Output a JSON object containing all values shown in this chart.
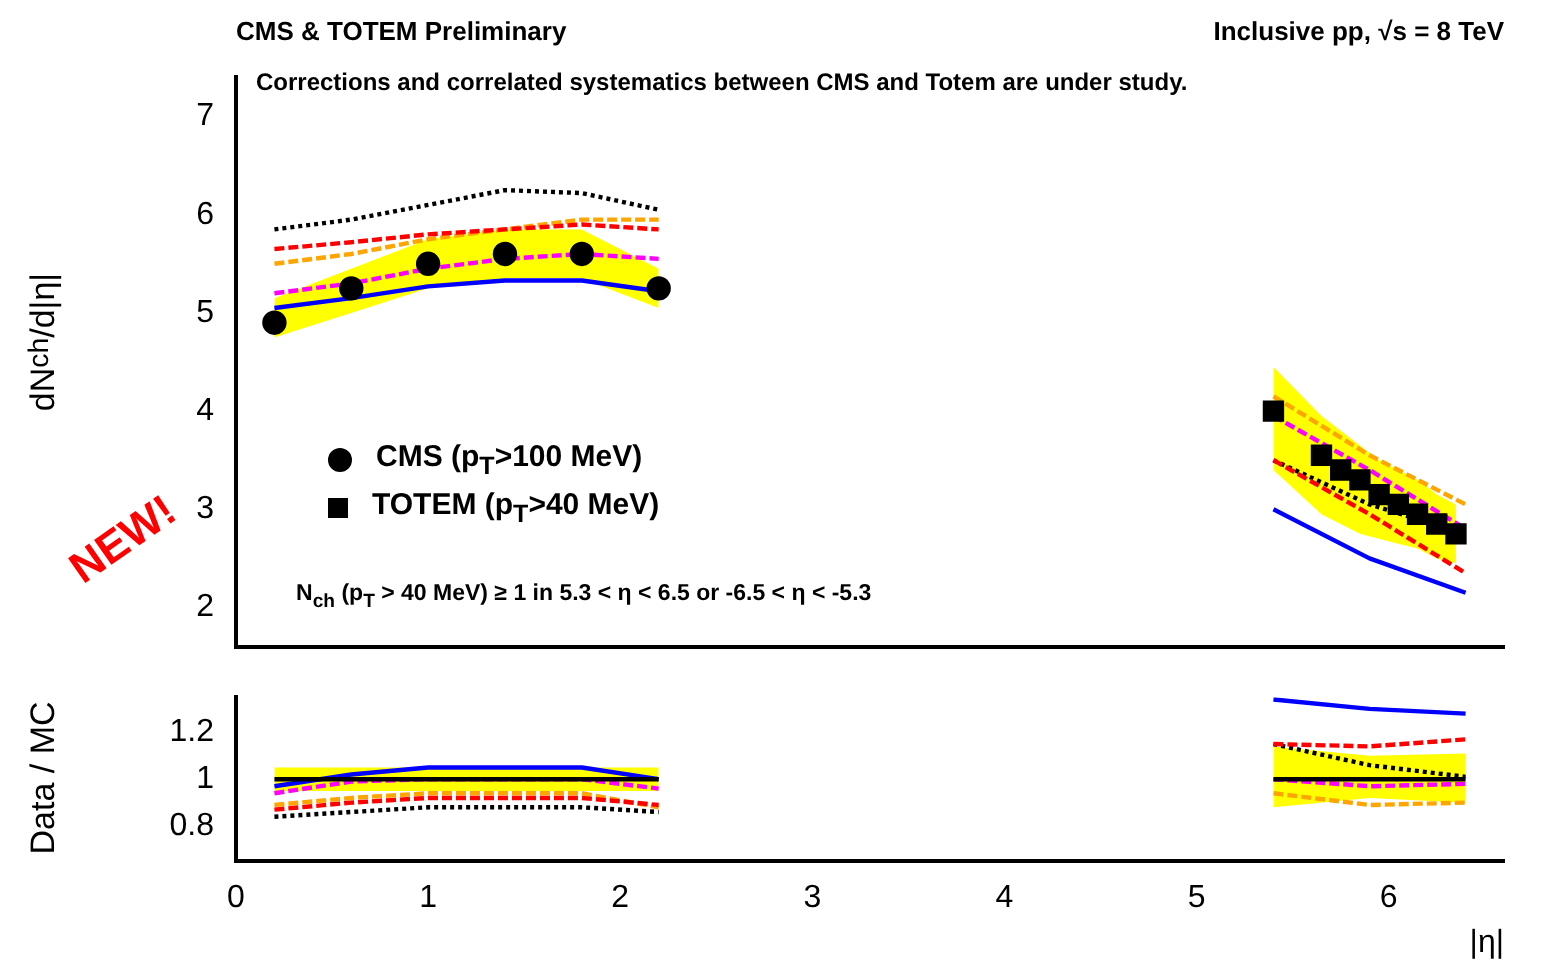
{
  "chart_data": [
    {
      "type": "line",
      "title": "CMS & TOTEM Preliminary",
      "subtitle": "Inclusive pp, √s = 8 TeV",
      "ylabel": "dN$_{ch}$/d|η|",
      "legend": "bottom left",
      "tick_labels": "y",
      "annotations": [
        "Corrections and correlated systematics between CMS and Totem are under study.",
        "N$_{ch}$ (p$_{T}$ > 40 MeV) ≥ 1 in 5.3 < η < 6.5 or -6.5 < η < -5.3",
        "NEW!"
      ],
      "xlim": [
        0,
        6.6
      ],
      "xticks": [
        0,
        1,
        2,
        3,
        4,
        5,
        6
      ],
      "ylim": [
        1.6,
        7.4
      ],
      "yticks": [
        2,
        3,
        4,
        5,
        6,
        7
      ],
      "series": [
        {
          "name": "CMS (p$_{T}$>100 MeV)",
          "type": "scatter",
          "marker": "circle",
          "color": "#000000",
          "x": [
            0.2,
            0.6,
            1.0,
            1.4,
            1.8,
            2.2
          ],
          "values": [
            4.9,
            5.25,
            5.5,
            5.6,
            5.6,
            5.25
          ],
          "lower": [
            4.75,
            5.0,
            5.25,
            5.35,
            5.35,
            5.05
          ],
          "upper": [
            5.15,
            5.45,
            5.75,
            5.85,
            5.85,
            5.45
          ]
        },
        {
          "name": "TOTEM (p$_{T}$>40 MeV)",
          "type": "scatter",
          "marker": "square",
          "color": "#000000",
          "x": [
            5.4,
            5.65,
            5.75,
            5.85,
            5.95,
            6.05,
            6.15,
            6.25,
            6.35
          ],
          "values": [
            4.0,
            3.55,
            3.4,
            3.3,
            3.15,
            3.05,
            2.95,
            2.85,
            2.75
          ],
          "lower": [
            3.4,
            2.95,
            2.85,
            2.75,
            2.7,
            2.65,
            2.6,
            2.5,
            2.45
          ],
          "upper": [
            4.45,
            3.95,
            3.8,
            3.65,
            3.5,
            3.4,
            3.3,
            3.15,
            3.05
          ]
        },
        {
          "type": "line",
          "color": "#0000ff",
          "line_style": "solid",
          "x": [
            0.2,
            0.6,
            1.0,
            1.4,
            1.8,
            2.2,
            3.8,
            5.4,
            5.9,
            6.4
          ],
          "values": [
            5.05,
            5.15,
            5.27,
            5.33,
            5.33,
            5.22,
            null,
            3.0,
            2.5,
            2.15
          ]
        },
        {
          "type": "line",
          "color": "#ff0000",
          "line_style": "dashed",
          "x": [
            0.2,
            0.6,
            1.0,
            1.4,
            1.8,
            2.2,
            3.8,
            5.4,
            5.9,
            6.4
          ],
          "values": [
            5.65,
            5.72,
            5.8,
            5.85,
            5.9,
            5.85,
            null,
            3.5,
            2.95,
            2.35
          ]
        },
        {
          "type": "line",
          "color": "#000000",
          "line_style": "dotted",
          "x": [
            0.2,
            0.6,
            1.0,
            1.4,
            1.8,
            2.2,
            3.8,
            5.4,
            5.9,
            6.4
          ],
          "values": [
            5.85,
            5.95,
            6.1,
            6.25,
            6.22,
            6.05,
            null,
            3.5,
            3.05,
            2.75
          ]
        },
        {
          "type": "line",
          "color": "#ffa500",
          "line_style": "dashed",
          "x": [
            0.2,
            0.6,
            1.0,
            1.4,
            1.8,
            2.2,
            3.8,
            5.4,
            5.9,
            6.4
          ],
          "values": [
            5.5,
            5.6,
            5.75,
            5.85,
            5.95,
            5.95,
            null,
            4.15,
            3.55,
            3.05
          ]
        },
        {
          "type": "line",
          "color": "#ff00ff",
          "line_style": "dashed",
          "x": [
            0.2,
            0.6,
            1.0,
            1.4,
            1.8,
            2.2,
            3.8,
            5.4,
            5.9,
            6.4
          ],
          "values": [
            5.2,
            5.3,
            5.45,
            5.55,
            5.6,
            5.55,
            null,
            3.95,
            3.4,
            2.8
          ]
        }
      ]
    },
    {
      "type": "line",
      "xlabel": "|η|",
      "ylabel": "Data / MC",
      "xlim": [
        0,
        6.6
      ],
      "xticks": [
        0,
        1,
        2,
        3,
        4,
        5,
        6
      ],
      "ylim": [
        0.65,
        1.35
      ],
      "yticks": [
        0.8,
        1,
        1.2
      ],
      "series": [
        {
          "type": "line",
          "color": "#000000",
          "line_style": "solid",
          "x": [
            0.2,
            0.6,
            1.0,
            1.4,
            1.8,
            2.2,
            3.8,
            5.4,
            5.9,
            6.4
          ],
          "values": [
            1,
            1,
            1,
            1,
            1,
            1,
            null,
            1,
            1,
            1
          ],
          "lower": [
            0.95,
            0.95,
            0.95,
            0.95,
            0.95,
            0.95,
            null,
            0.88,
            0.92,
            0.9
          ],
          "upper": [
            1.05,
            1.05,
            1.05,
            1.05,
            1.05,
            1.05,
            null,
            1.14,
            1.1,
            1.11
          ]
        },
        {
          "type": "line",
          "color": "#0000ff",
          "line_style": "solid",
          "x": [
            0.2,
            0.6,
            1.0,
            1.4,
            1.8,
            2.2,
            3.8,
            5.4,
            5.9,
            6.4
          ],
          "values": [
            0.97,
            1.02,
            1.05,
            1.05,
            1.05,
            1.0,
            null,
            1.34,
            1.3,
            1.28
          ]
        },
        {
          "type": "line",
          "color": "#ff0000",
          "line_style": "dashed",
          "x": [
            0.2,
            0.6,
            1.0,
            1.4,
            1.8,
            2.2,
            3.8,
            5.4,
            5.9,
            6.4
          ],
          "values": [
            0.87,
            0.9,
            0.92,
            0.92,
            0.92,
            0.89,
            null,
            1.15,
            1.14,
            1.17
          ]
        },
        {
          "type": "line",
          "color": "#000000",
          "line_style": "dotted",
          "x": [
            0.2,
            0.6,
            1.0,
            1.4,
            1.8,
            2.2,
            3.8,
            5.4,
            5.9,
            6.4
          ],
          "values": [
            0.84,
            0.86,
            0.88,
            0.88,
            0.88,
            0.86,
            null,
            1.15,
            1.06,
            1.01
          ]
        },
        {
          "type": "line",
          "color": "#ffa500",
          "line_style": "dashed",
          "x": [
            0.2,
            0.6,
            1.0,
            1.4,
            1.8,
            2.2,
            3.8,
            5.4,
            5.9,
            6.4
          ],
          "values": [
            0.89,
            0.92,
            0.94,
            0.94,
            0.94,
            0.88,
            null,
            0.94,
            0.89,
            0.9
          ]
        },
        {
          "type": "line",
          "color": "#ff00ff",
          "line_style": "dashed",
          "x": [
            0.2,
            0.6,
            1.0,
            1.4,
            1.8,
            2.2,
            3.8,
            5.4,
            5.9,
            6.4
          ],
          "values": [
            0.94,
            0.99,
            1.0,
            1.0,
            1.0,
            0.96,
            null,
            1.0,
            0.97,
            0.98
          ]
        }
      ]
    }
  ]
}
